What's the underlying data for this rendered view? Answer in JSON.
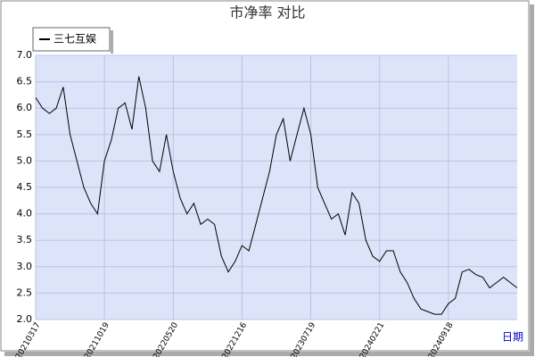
{
  "chart_data": {
    "type": "line",
    "title": "市净率  对比",
    "x_label": "日期",
    "categories": [
      "20210317",
      null,
      null,
      null,
      null,
      null,
      null,
      null,
      null,
      null,
      "20211019",
      null,
      null,
      null,
      null,
      null,
      null,
      null,
      null,
      null,
      "20220520",
      null,
      null,
      null,
      null,
      null,
      null,
      null,
      null,
      null,
      "20221216",
      null,
      null,
      null,
      null,
      null,
      null,
      null,
      null,
      null,
      "20230719",
      null,
      null,
      null,
      null,
      null,
      null,
      null,
      null,
      null,
      "20240221",
      null,
      null,
      null,
      null,
      null,
      null,
      null,
      null,
      null,
      "20240918",
      null,
      null,
      null,
      null,
      null,
      null,
      null,
      null,
      null,
      null
    ],
    "series": [
      {
        "name": "三七互娱",
        "color": "#000000",
        "values": [
          6.2,
          6.0,
          5.9,
          6.0,
          6.4,
          5.5,
          5.0,
          4.5,
          4.2,
          4.0,
          5.0,
          5.4,
          6.0,
          6.1,
          5.6,
          6.6,
          6.0,
          5.0,
          4.8,
          5.5,
          4.8,
          4.3,
          4.0,
          4.2,
          3.8,
          3.9,
          3.8,
          3.2,
          2.9,
          3.1,
          3.4,
          3.3,
          3.8,
          4.3,
          4.8,
          5.5,
          5.8,
          5.0,
          5.5,
          6.0,
          5.5,
          4.5,
          4.2,
          3.9,
          4.0,
          3.6,
          4.4,
          4.2,
          3.5,
          3.2,
          3.1,
          3.3,
          3.3,
          2.9,
          2.7,
          2.4,
          2.2,
          2.15,
          2.1,
          2.1,
          2.3,
          2.4,
          2.9,
          2.95,
          2.85,
          2.8,
          2.6,
          2.7,
          2.8,
          2.7,
          2.6
        ]
      }
    ],
    "ylim": [
      2,
      7
    ],
    "yticks": [
      {
        "value": 2,
        "label": "2.0"
      },
      {
        "value": 2.5,
        "label": "2.5"
      },
      {
        "value": 3,
        "label": "3.0"
      },
      {
        "value": 3.5,
        "label": "3.5"
      },
      {
        "value": 4,
        "label": "4.0"
      },
      {
        "value": 4.5,
        "label": "4.5"
      },
      {
        "value": 5,
        "label": "5.0"
      },
      {
        "value": 5.5,
        "label": "5.5"
      },
      {
        "value": 6,
        "label": "6.0"
      },
      {
        "value": 6.5,
        "label": "6.5"
      },
      {
        "value": 7,
        "label": "7.0"
      }
    ],
    "grid": true,
    "legend": "top-left"
  }
}
